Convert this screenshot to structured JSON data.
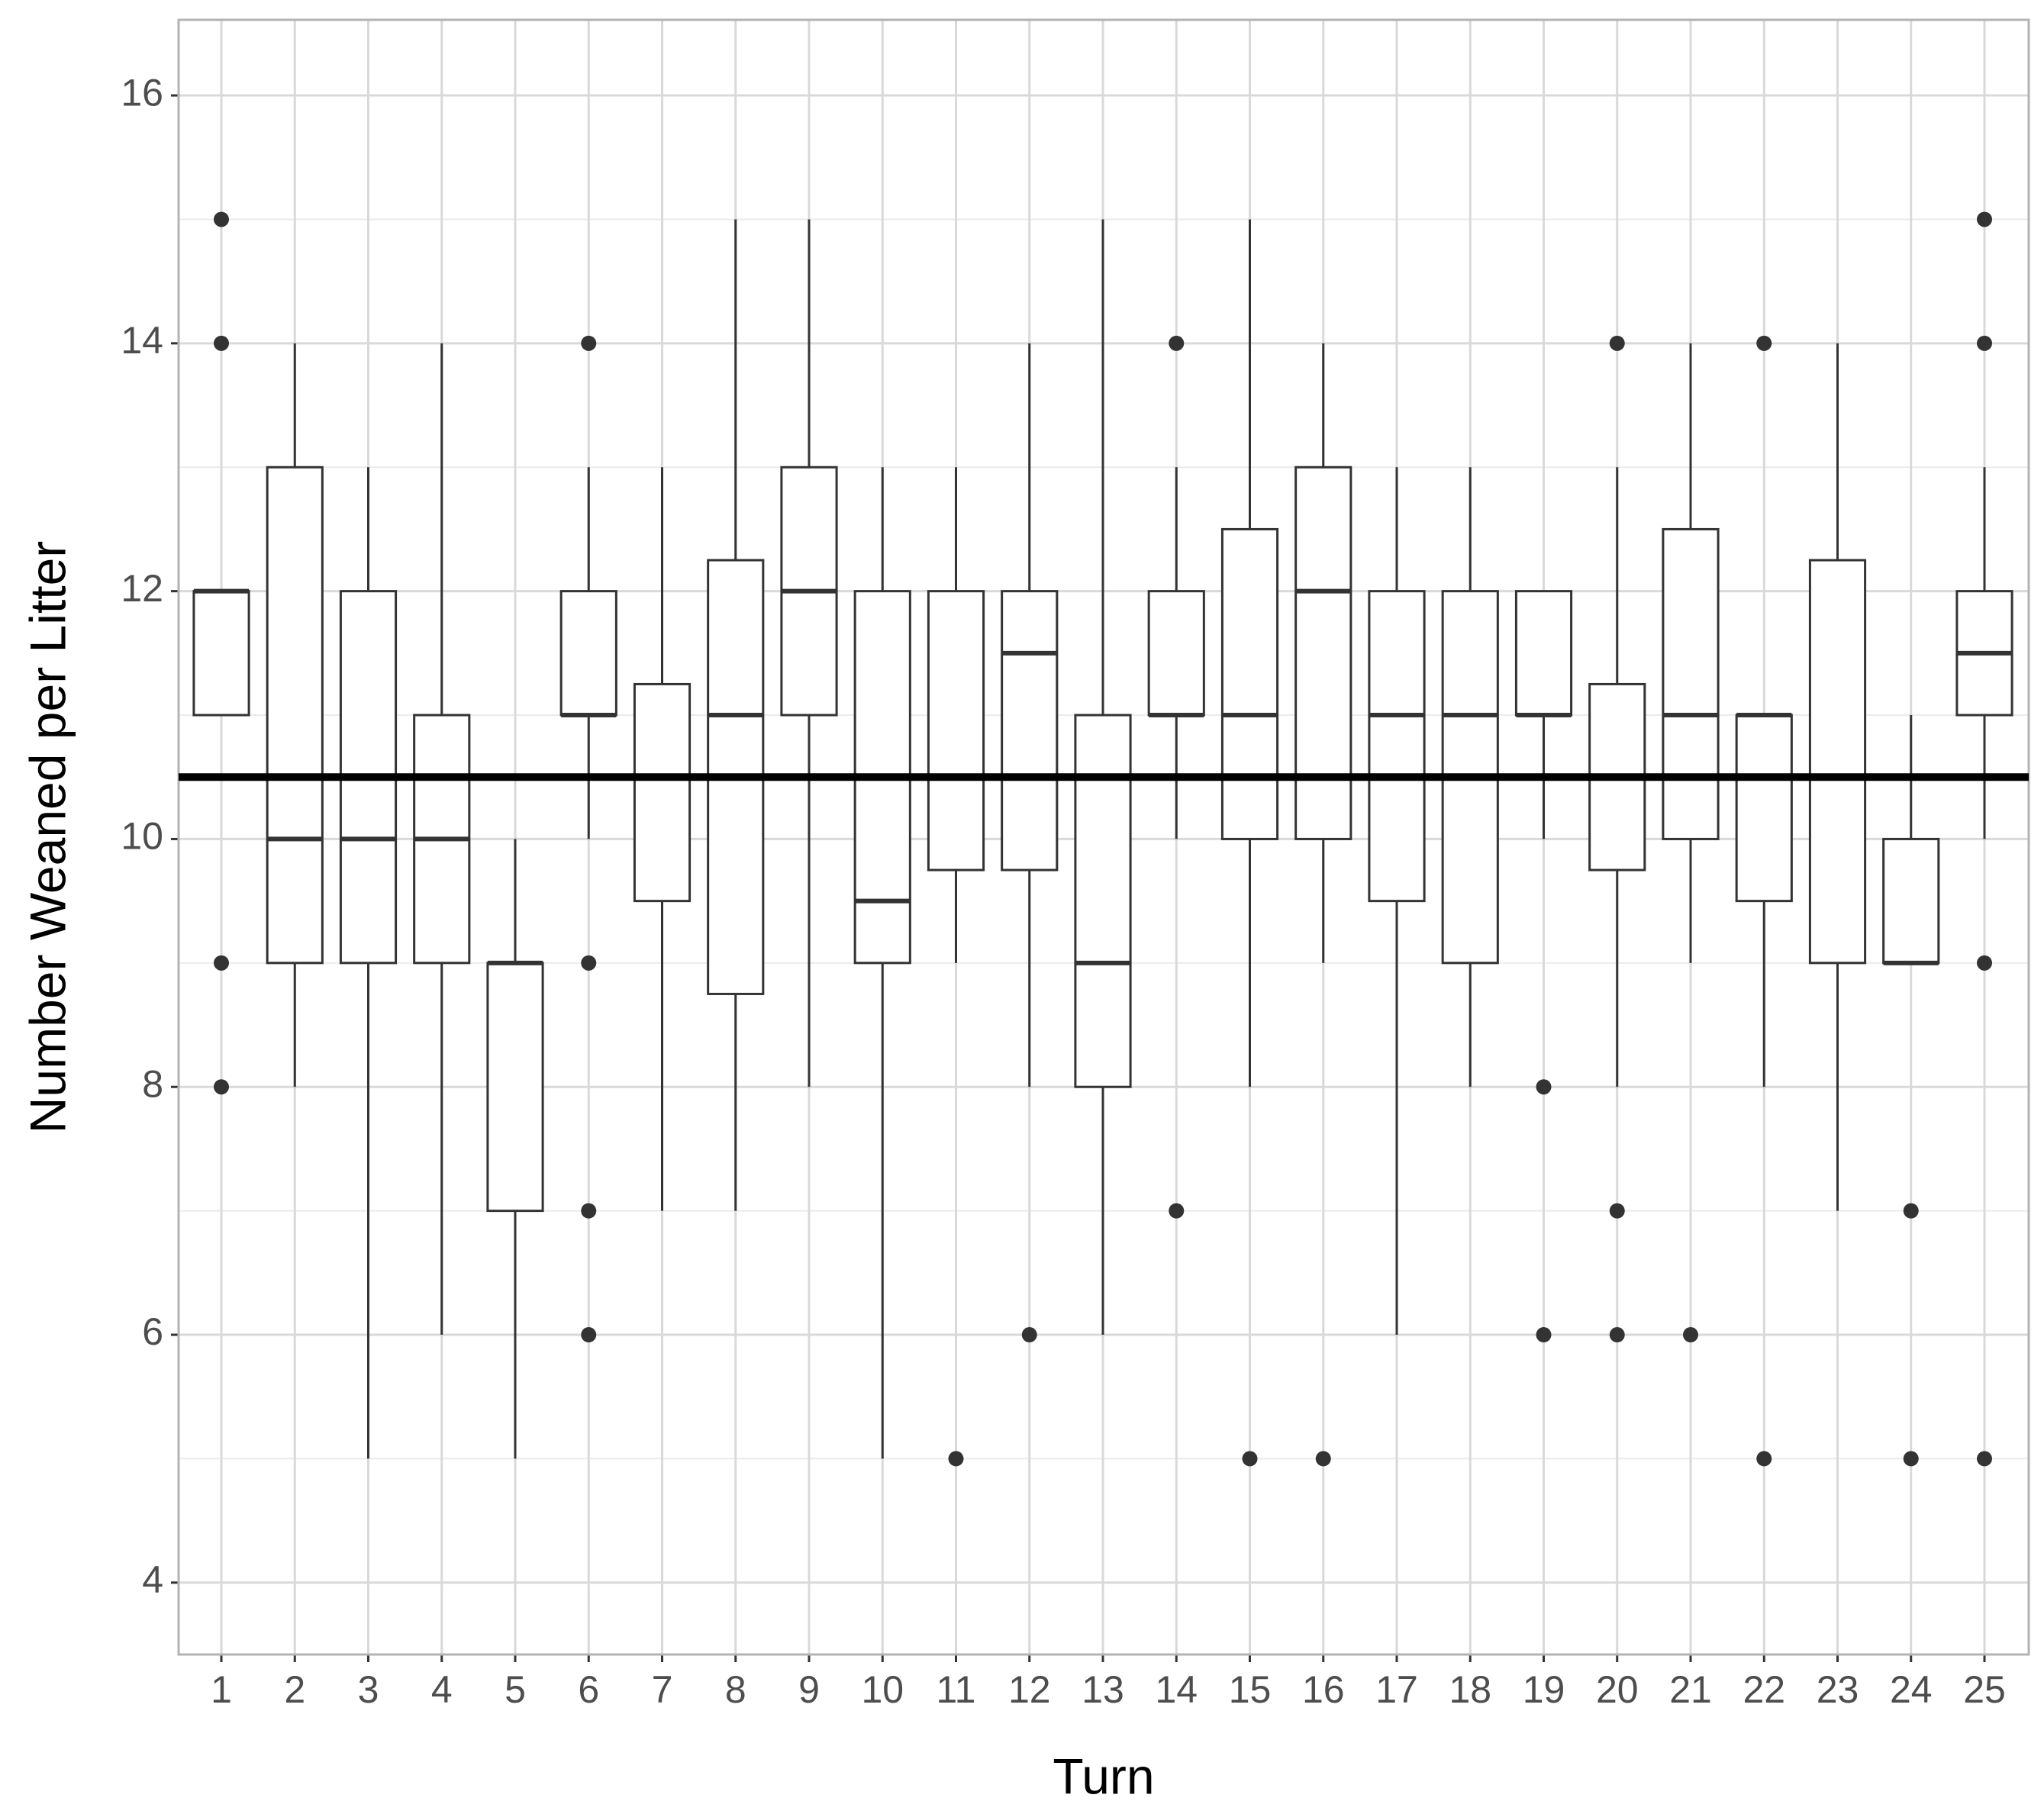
{
  "chart_data": {
    "type": "box",
    "x_label": "Turn",
    "y_label": "Number Weaned per Litter",
    "categories": [
      "1",
      "2",
      "3",
      "4",
      "5",
      "6",
      "7",
      "8",
      "9",
      "10",
      "11",
      "12",
      "13",
      "14",
      "15",
      "16",
      "17",
      "18",
      "19",
      "20",
      "21",
      "22",
      "23",
      "24",
      "25"
    ],
    "boxes": [
      {
        "low": 11,
        "q1": 11,
        "median": 12,
        "q3": 12,
        "high": 12,
        "outliers": [
          15,
          14,
          9,
          8
        ]
      },
      {
        "low": 8,
        "q1": 9,
        "median": 10,
        "q3": 13,
        "high": 14,
        "outliers": []
      },
      {
        "low": 5,
        "q1": 9,
        "median": 10,
        "q3": 12,
        "high": 13,
        "outliers": []
      },
      {
        "low": 6,
        "q1": 9,
        "median": 10,
        "q3": 11,
        "high": 14,
        "outliers": []
      },
      {
        "low": 5,
        "q1": 7,
        "median": 9,
        "q3": 9,
        "high": 10,
        "outliers": []
      },
      {
        "low": 10,
        "q1": 11,
        "median": 11,
        "q3": 12,
        "high": 13,
        "outliers": [
          14,
          9,
          7,
          6
        ]
      },
      {
        "low": 7,
        "q1": 9.5,
        "median": 10.5,
        "q3": 11.25,
        "high": 13,
        "outliers": []
      },
      {
        "low": 7,
        "q1": 8.75,
        "median": 11,
        "q3": 12.25,
        "high": 15,
        "outliers": []
      },
      {
        "low": 8,
        "q1": 11,
        "median": 12,
        "q3": 13,
        "high": 15,
        "outliers": []
      },
      {
        "low": 5,
        "q1": 9,
        "median": 9.5,
        "q3": 12,
        "high": 13,
        "outliers": []
      },
      {
        "low": 9,
        "q1": 9.75,
        "median": 10.5,
        "q3": 12,
        "high": 13,
        "outliers": [
          5
        ]
      },
      {
        "low": 8,
        "q1": 9.75,
        "median": 11.5,
        "q3": 12,
        "high": 14,
        "outliers": [
          6
        ]
      },
      {
        "low": 6,
        "q1": 8,
        "median": 9,
        "q3": 11,
        "high": 15,
        "outliers": []
      },
      {
        "low": 10,
        "q1": 11,
        "median": 11,
        "q3": 12,
        "high": 13,
        "outliers": [
          14,
          7
        ]
      },
      {
        "low": 8,
        "q1": 10,
        "median": 11,
        "q3": 12.5,
        "high": 15,
        "outliers": [
          5
        ]
      },
      {
        "low": 9,
        "q1": 10,
        "median": 12,
        "q3": 13,
        "high": 14,
        "outliers": [
          5
        ]
      },
      {
        "low": 6,
        "q1": 9.5,
        "median": 11,
        "q3": 12,
        "high": 13,
        "outliers": []
      },
      {
        "low": 8,
        "q1": 9,
        "median": 11,
        "q3": 12,
        "high": 13,
        "outliers": []
      },
      {
        "low": 10,
        "q1": 11,
        "median": 11,
        "q3": 12,
        "high": 12,
        "outliers": [
          8,
          6
        ]
      },
      {
        "low": 8,
        "q1": 9.75,
        "median": 10.5,
        "q3": 11.25,
        "high": 13,
        "outliers": [
          14,
          7,
          6
        ]
      },
      {
        "low": 9,
        "q1": 10,
        "median": 11,
        "q3": 12.5,
        "high": 14,
        "outliers": [
          6
        ]
      },
      {
        "low": 8,
        "q1": 9.5,
        "median": 11,
        "q3": 11,
        "high": 11,
        "outliers": [
          14,
          5
        ]
      },
      {
        "low": 7,
        "q1": 9,
        "median": 10.5,
        "q3": 12.25,
        "high": 14,
        "outliers": []
      },
      {
        "low": 9,
        "q1": 9,
        "median": 9,
        "q3": 10,
        "high": 11,
        "outliers": [
          7,
          5
        ]
      },
      {
        "low": 10,
        "q1": 11,
        "median": 11.5,
        "q3": 12,
        "high": 13,
        "outliers": [
          15,
          14,
          9,
          5
        ]
      }
    ],
    "reference_line": 10.5,
    "color": "#333333",
    "ylim": [
      3.42,
      16.61
    ],
    "yticks": [
      4,
      6,
      8,
      10,
      12,
      14,
      16
    ],
    "minor_yticks": [
      5,
      7,
      9,
      11,
      13,
      15
    ],
    "grid": true
  }
}
